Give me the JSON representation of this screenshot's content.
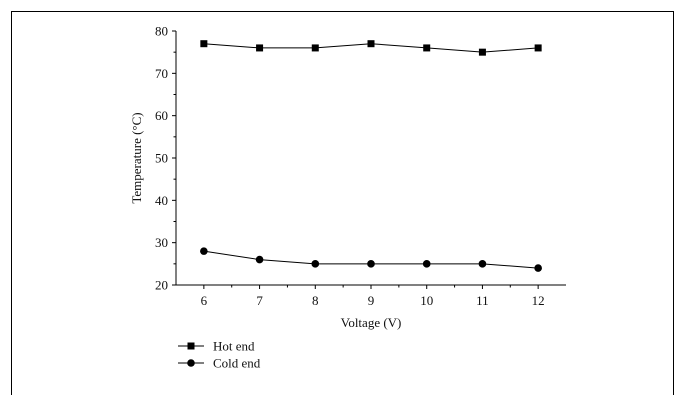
{
  "chart_data": {
    "type": "line",
    "title": "",
    "xlabel": "Voltage (V)",
    "ylabel": "Temperature (°C)",
    "x": [
      6,
      7,
      8,
      9,
      10,
      11,
      12
    ],
    "xlim": [
      5.5,
      12.5
    ],
    "ylim": [
      20,
      80
    ],
    "xticks": [
      "6",
      "7",
      "8",
      "9",
      "10",
      "11",
      "12"
    ],
    "yticks": [
      "20",
      "30",
      "40",
      "50",
      "60",
      "70",
      "80"
    ],
    "grid": false,
    "legend_position": "bottom-left",
    "series": [
      {
        "name": "Hot end",
        "marker": "square",
        "color": "#000000",
        "values": [
          77,
          76,
          76,
          77,
          76,
          75,
          76
        ]
      },
      {
        "name": "Cold end",
        "marker": "circle",
        "color": "#000000",
        "values": [
          28,
          26,
          25,
          25,
          25,
          25,
          24
        ]
      }
    ]
  }
}
